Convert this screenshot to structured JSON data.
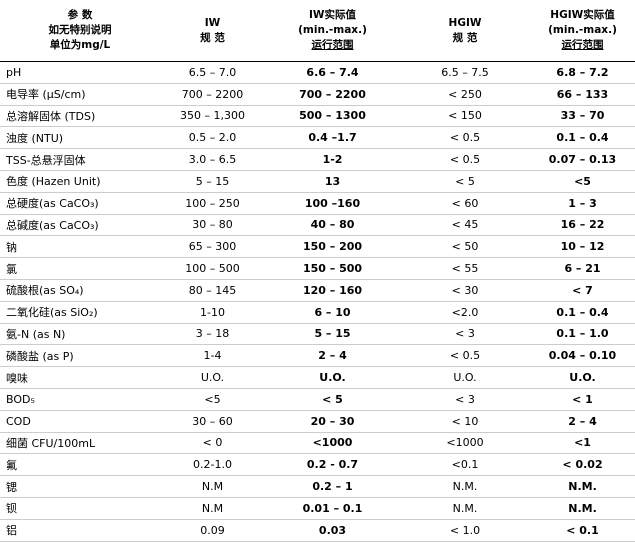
{
  "header": {
    "columns": [
      [
        "参 数",
        "如无特别说明",
        "单位为mg/L"
      ],
      [
        "IW",
        "规 范"
      ],
      [
        "IW实际值",
        "(min.-max.)",
        "运行范围"
      ],
      [
        "HGIW",
        "规 范"
      ],
      [
        "HGIW实际值",
        "(min.-max.)",
        "运行范围"
      ]
    ]
  },
  "table": {
    "rows": [
      [
        "pH",
        "6.5 – 7.0",
        "6.6 – 7.4",
        "6.5 – 7.5",
        "6.8 – 7.2"
      ],
      [
        "电导率 (µS/cm)",
        "700 – 2200",
        "700 – 2200",
        "< 250",
        "66 – 133"
      ],
      [
        "总溶解固体 (TDS)",
        "350 – 1,300",
        "500 – 1300",
        "< 150",
        "33 – 70"
      ],
      [
        "浊度 (NTU)",
        "0.5 – 2.0",
        "0.4 –1.7",
        "< 0.5",
        "0.1 – 0.4"
      ],
      [
        "TSS-总悬浮固体",
        "3.0 – 6.5",
        "1-2",
        "< 0.5",
        "0.07 – 0.13"
      ],
      [
        "色度 (Hazen Unit)",
        "5 – 15",
        "13",
        "< 5",
        "<5"
      ],
      [
        "总硬度(as CaCO₃)",
        "100 – 250",
        "100 –160",
        "< 60",
        "1 – 3"
      ],
      [
        "总碱度(as CaCO₃)",
        "30 – 80",
        "40 – 80",
        "< 45",
        "16 – 22"
      ],
      [
        "钠",
        "65 – 300",
        "150 – 200",
        "< 50",
        "10 – 12"
      ],
      [
        "氯",
        "100 – 500",
        "150 – 500",
        "< 55",
        "6 – 21"
      ],
      [
        "硫酸根(as SO₄)",
        "80 – 145",
        "120 – 160",
        "< 30",
        "< 7"
      ],
      [
        "二氧化硅(as SiO₂)",
        "1-10",
        "6 – 10",
        "<2.0",
        "0.1 – 0.4"
      ],
      [
        "氨-N (as N)",
        "3 – 18",
        "5 – 15",
        "< 3",
        "0.1 – 1.0"
      ],
      [
        "磷酸盐 (as P)",
        "1-4",
        "2 – 4",
        "< 0.5",
        "0.04 – 0.10"
      ],
      [
        "嗅味",
        "U.O.",
        "U.O.",
        "U.O.",
        "U.O."
      ],
      [
        "BOD₅",
        "<5",
        "< 5",
        "< 3",
        "< 1"
      ],
      [
        "COD",
        "30 – 60",
        "20 – 30",
        "< 10",
        "2 – 4"
      ],
      [
        "细菌 CFU/100mL",
        "< 0",
        "<1000",
        "<1000",
        "<1"
      ],
      [
        "氟",
        "0.2-1.0",
        "0.2 - 0.7",
        "<0.1",
        "< 0.02"
      ],
      [
        "锶",
        "N.M",
        "0.2 – 1",
        "N.M.",
        "N.M."
      ],
      [
        "钡",
        "N.M",
        "0.01 – 0.1",
        "N.M.",
        "N.M."
      ],
      [
        "铝",
        "0.09",
        "0.03",
        "< 1.0",
        "< 0.1"
      ]
    ]
  }
}
